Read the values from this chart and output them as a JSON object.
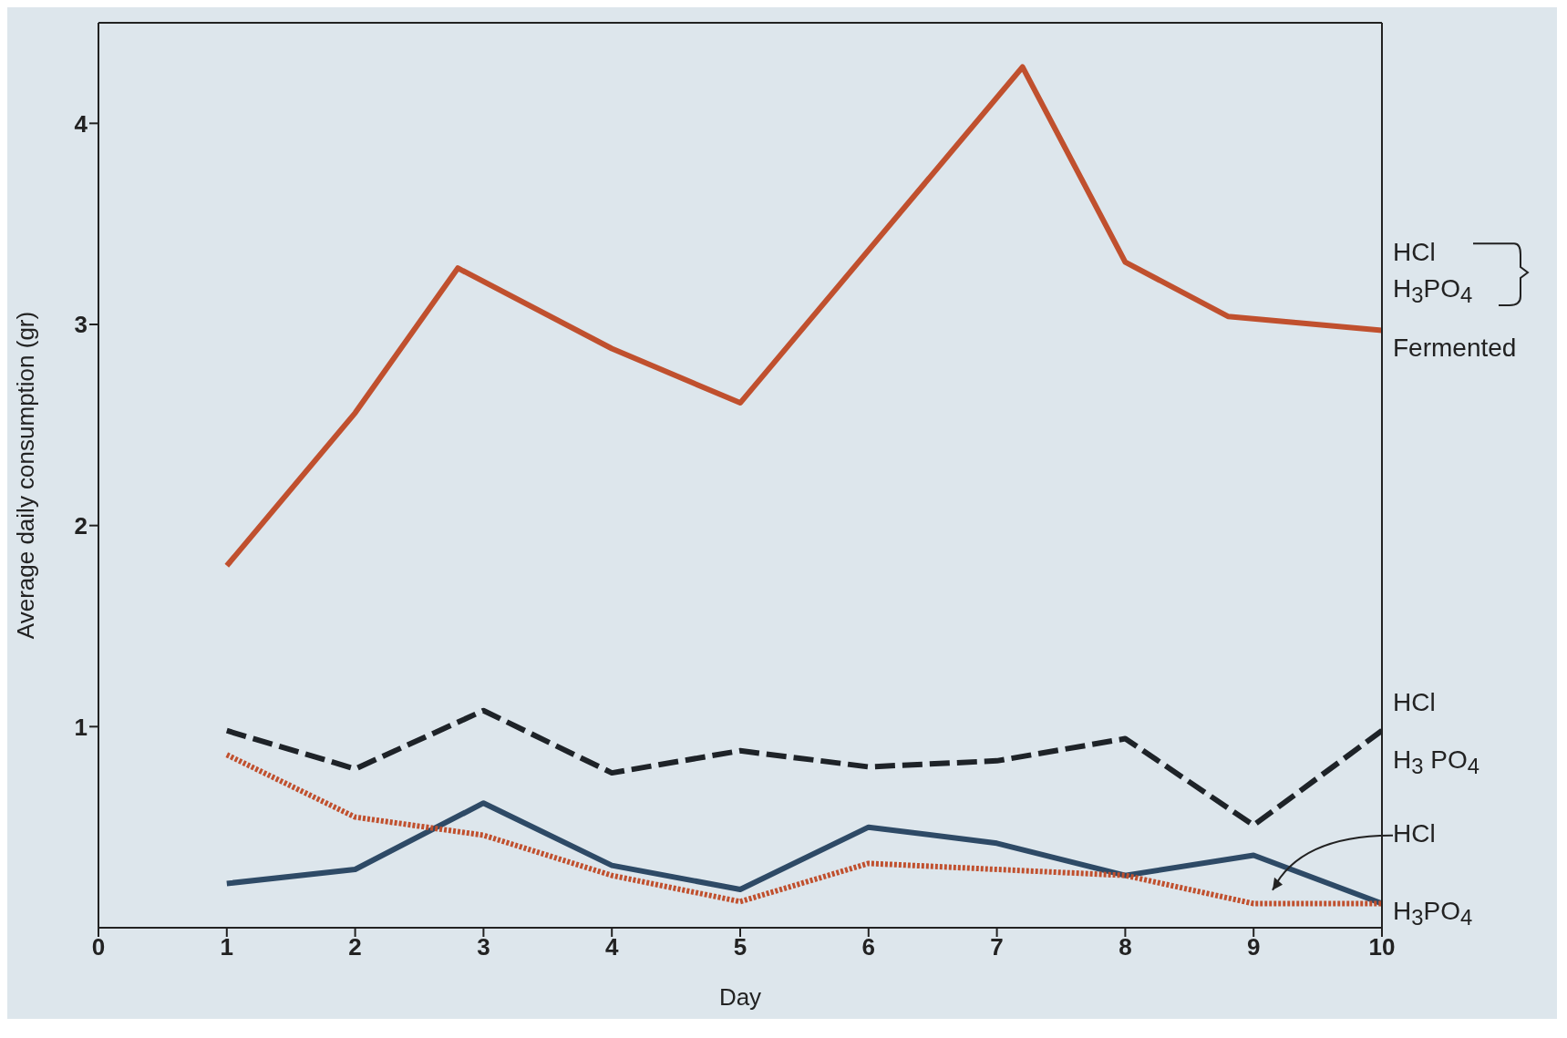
{
  "chart_data": {
    "type": "line",
    "xlabel": "Day",
    "ylabel": "Average daily consumption (gr)",
    "xlim": [
      0,
      10
    ],
    "xticks": [
      0,
      1,
      2,
      3,
      4,
      5,
      6,
      7,
      8,
      9,
      10
    ],
    "ylim": [
      0,
      4.5
    ],
    "yticks": [
      1,
      2,
      3,
      4
    ],
    "marker": "none",
    "x": [
      1,
      2,
      3,
      4,
      5,
      6,
      7,
      8,
      9,
      10
    ],
    "series": [
      {
        "color": "#c0502e",
        "line_style": "solid",
        "x": [
          1,
          2,
          2.8,
          4,
          5,
          7.2,
          8,
          8.8,
          10
        ],
        "values": [
          1.8,
          2.56,
          3.28,
          2.88,
          2.61,
          4.28,
          3.31,
          3.04,
          2.97
        ]
      },
      {
        "color": "#1e2328",
        "line_style": "dashed",
        "values": [
          0.98,
          0.79,
          1.08,
          0.77,
          0.88,
          0.8,
          0.83,
          0.94,
          0.51,
          0.98
        ]
      },
      {
        "color": "#2e4a66",
        "line_style": "solid",
        "values": [
          0.22,
          0.29,
          0.62,
          0.31,
          0.19,
          0.5,
          0.42,
          0.26,
          0.36,
          0.12
        ]
      },
      {
        "color": "#c0502e",
        "line_style": "dotted",
        "values": [
          0.86,
          0.55,
          0.46,
          0.26,
          0.13,
          0.32,
          0.29,
          0.26,
          0.12,
          0.12
        ]
      }
    ],
    "annotations": [
      "HCl",
      "H$_{3}$PO$_{4}$",
      "Fermented",
      "HCl",
      "H$_{3}$ PO$_{4}$",
      "HCl",
      "H$_{3}$PO$_{4}$"
    ]
  }
}
